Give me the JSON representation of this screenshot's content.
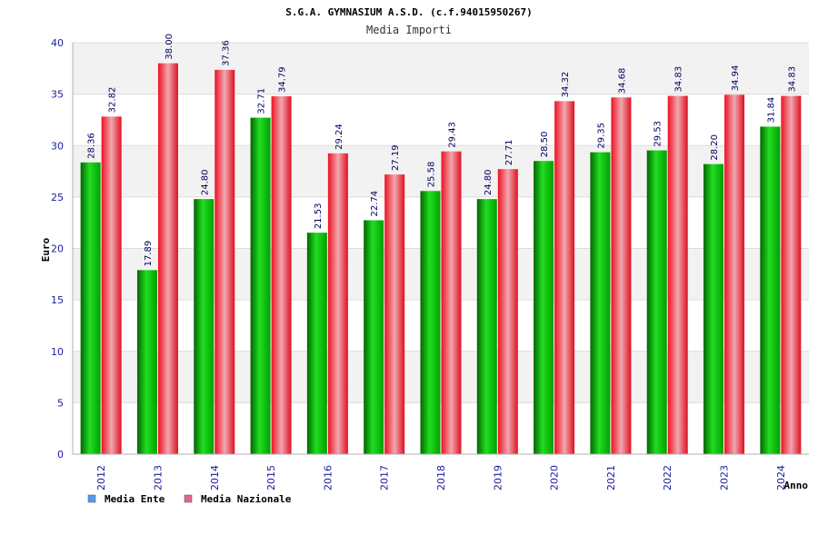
{
  "chart_data": {
    "type": "bar",
    "title": "S.G.A. GYMNASIUM A.S.D. (c.f.94015950267)",
    "subtitle": "Media Importi",
    "xlabel": "Anno",
    "ylabel": "Euro",
    "ylim": [
      0,
      40
    ],
    "yticks": [
      0,
      5,
      10,
      15,
      20,
      25,
      30,
      35,
      40
    ],
    "grid": true,
    "legend_position": "bottom-left",
    "categories": [
      "2012",
      "2013",
      "2014",
      "2015",
      "2016",
      "2017",
      "2018",
      "2019",
      "2020",
      "2021",
      "2022",
      "2023",
      "2024"
    ],
    "series": [
      {
        "name": "Media Ente",
        "color": "#00a000",
        "legend_color": "#5599ee",
        "values": [
          28.36,
          17.89,
          24.8,
          32.71,
          21.53,
          22.74,
          25.58,
          24.8,
          28.5,
          29.35,
          29.53,
          28.2,
          31.84
        ],
        "labels": [
          "28.36",
          "17.89",
          "24.80",
          "32.71",
          "21.53",
          "22.74",
          "25.58",
          "24.80",
          "28.50",
          "29.35",
          "29.53",
          "28.20",
          "31.84"
        ]
      },
      {
        "name": "Media Nazionale",
        "color": "#e01020",
        "legend_color": "#dd6699",
        "values": [
          32.82,
          38.0,
          37.36,
          34.79,
          29.24,
          27.19,
          29.43,
          27.71,
          34.32,
          34.68,
          34.83,
          34.94,
          34.83
        ],
        "labels": [
          "32.82",
          "38.00",
          "37.36",
          "34.79",
          "29.24",
          "27.19",
          "29.43",
          "27.71",
          "34.32",
          "34.68",
          "34.83",
          "34.94",
          "34.83"
        ]
      }
    ]
  }
}
